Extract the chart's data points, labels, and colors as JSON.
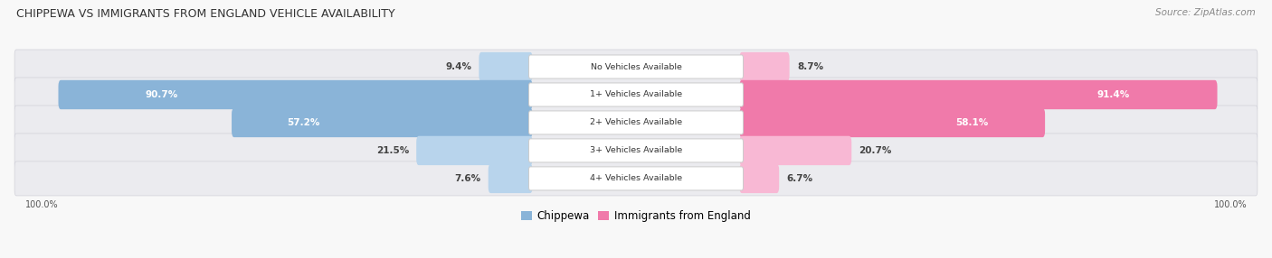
{
  "title": "CHIPPEWA VS IMMIGRANTS FROM ENGLAND VEHICLE AVAILABILITY",
  "source": "Source: ZipAtlas.com",
  "categories": [
    "No Vehicles Available",
    "1+ Vehicles Available",
    "2+ Vehicles Available",
    "3+ Vehicles Available",
    "4+ Vehicles Available"
  ],
  "chippewa": [
    9.4,
    90.7,
    57.2,
    21.5,
    7.6
  ],
  "england": [
    8.7,
    91.4,
    58.1,
    20.7,
    6.7
  ],
  "color_chippewa": "#8ab4d8",
  "color_england": "#f07aaa",
  "color_chippewa_light": "#b8d4ec",
  "color_england_light": "#f8b8d4",
  "row_bg": "#f0f0f4",
  "fig_bg": "#f8f8f8",
  "max_val": 100.0,
  "figsize": [
    14.06,
    2.86
  ],
  "dpi": 100
}
